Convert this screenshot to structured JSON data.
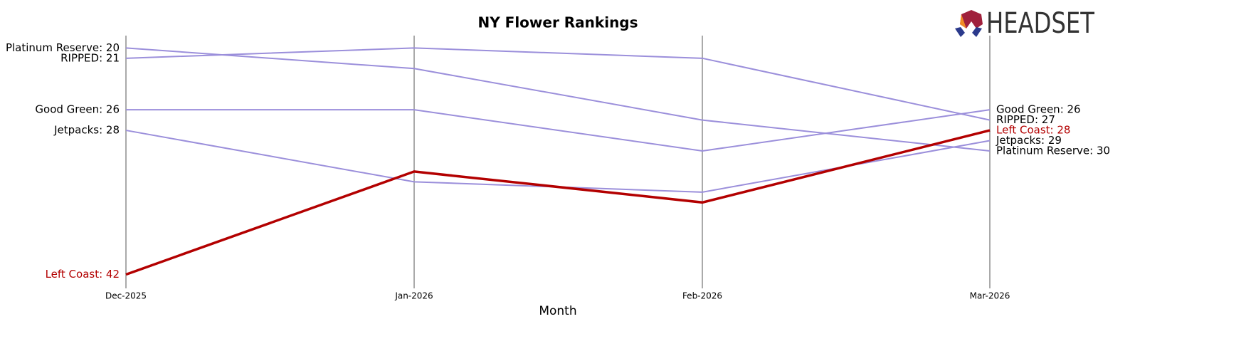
{
  "chart_data": {
    "type": "bump",
    "title": "NY Flower Rankings",
    "x_label": "Month",
    "logo": "HEADSET",
    "categories": [
      "Dec-2025",
      "Jan-2026",
      "Feb-2026",
      "Mar-2026"
    ],
    "ylim": [
      18.8,
      43
    ],
    "y_inverted": true,
    "series": [
      {
        "name": "Platinum Reserve",
        "color": "#9b8fdb",
        "values": [
          20,
          22,
          27,
          30
        ],
        "value_labels": [
          "Platinum Reserve: 20",
          null,
          null,
          "Platinum Reserve: 30"
        ]
      },
      {
        "name": "RIPPED",
        "color": "#9b8fdb",
        "values": [
          21,
          20,
          21,
          27
        ],
        "value_labels": [
          "RIPPED: 21",
          null,
          null,
          "RIPPED: 27"
        ]
      },
      {
        "name": "Good Green",
        "color": "#9b8fdb",
        "values": [
          26,
          26,
          30,
          26
        ],
        "value_labels": [
          "Good Green: 26",
          null,
          null,
          "Good Green: 26"
        ]
      },
      {
        "name": "Jetpacks",
        "color": "#9b8fdb",
        "values": [
          28,
          33,
          34,
          29
        ],
        "value_labels": [
          "Jetpacks: 28",
          null,
          null,
          "Jetpacks: 29"
        ]
      },
      {
        "name": "Left Coast",
        "color": "#b30000",
        "values": [
          42,
          32,
          35,
          28
        ],
        "value_labels": [
          "Left Coast: 42",
          null,
          null,
          "Left Coast: 28"
        ],
        "highlight": true
      }
    ]
  }
}
